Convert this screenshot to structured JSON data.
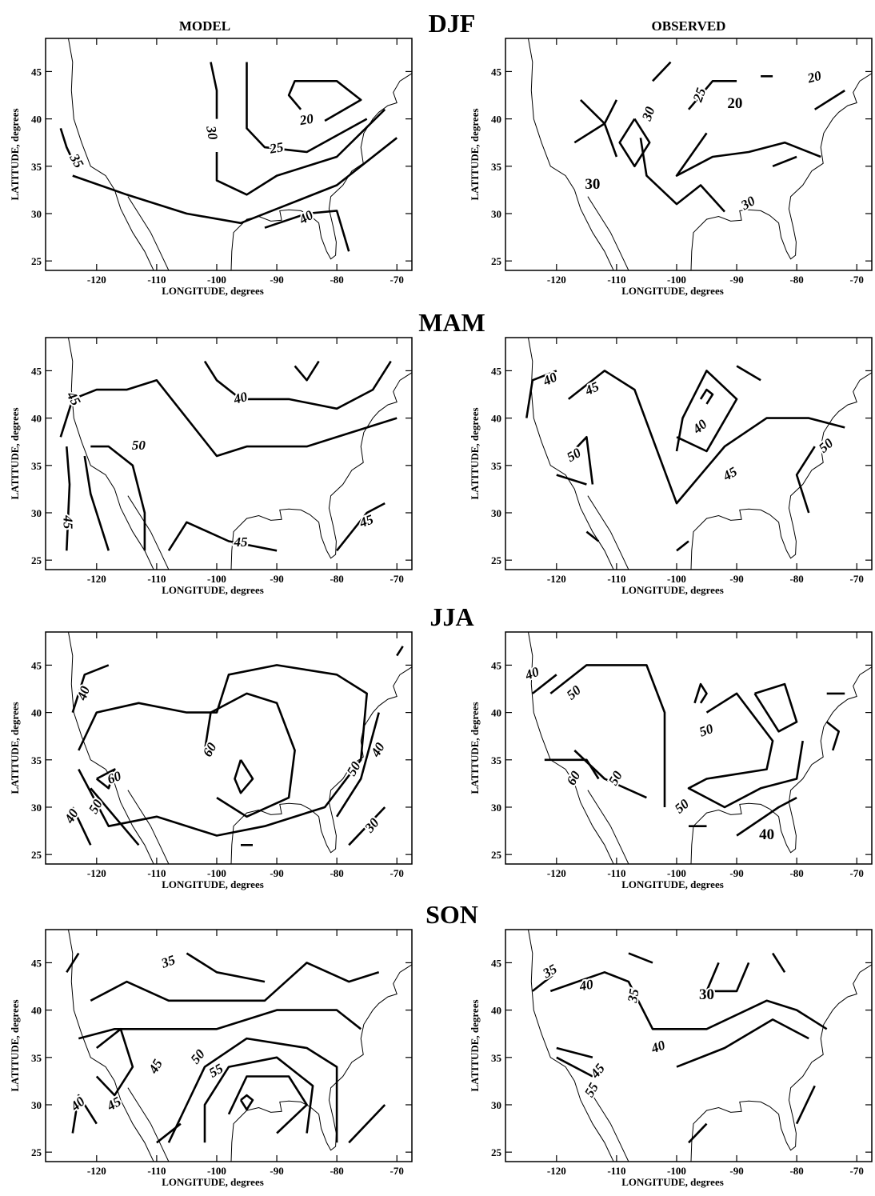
{
  "figure": {
    "column_titles": [
      "MODEL",
      "OBSERVED"
    ],
    "rows": [
      {
        "season": "DJF",
        "panels": [
          {
            "xlabel": "LONGITUDE, degrees",
            "ylabel": "LATITUDE, degrees",
            "xlim": [
              -128.5,
              -67.5
            ],
            "ylim": [
              24,
              48.5
            ],
            "xticks": [
              -120,
              -110,
              -100,
              -90,
              -80,
              -70
            ],
            "yticks": [
              25,
              30,
              35,
              40,
              45
            ],
            "contour_labels": [
              "30",
              "20",
              "25",
              "35",
              "40"
            ]
          },
          {
            "xlabel": "LONGITUDE, degrees",
            "ylabel": "LATITUDE, degrees",
            "xlim": [
              -128.5,
              -67.5
            ],
            "ylim": [
              24,
              48.5
            ],
            "xticks": [
              -120,
              -110,
              -100,
              -90,
              -80,
              -70
            ],
            "yticks": [
              25,
              30,
              35,
              40,
              45
            ],
            "contour_labels": [
              "20",
              "30",
              "25",
              "20",
              "30",
              "30"
            ]
          }
        ]
      },
      {
        "season": "MAM",
        "panels": [
          {
            "xlabel": "LONGITUDE, degrees",
            "ylabel": "LATITUDE, degrees",
            "xlim": [
              -128.5,
              -67.5
            ],
            "ylim": [
              24,
              48.5
            ],
            "xticks": [
              -120,
              -110,
              -100,
              -90,
              -80,
              -70
            ],
            "yticks": [
              25,
              30,
              35,
              40,
              45
            ],
            "contour_labels": [
              "45",
              "40",
              "50",
              "45",
              "45",
              "45"
            ]
          },
          {
            "xlabel": "LONGITUDE, degrees",
            "ylabel": "LATITUDE, degrees",
            "xlim": [
              -128.5,
              -67.5
            ],
            "ylim": [
              24,
              48.5
            ],
            "xticks": [
              -120,
              -110,
              -100,
              -90,
              -80,
              -70
            ],
            "yticks": [
              25,
              30,
              35,
              40,
              45
            ],
            "contour_labels": [
              "40",
              "45",
              "40",
              "50",
              "45",
              "50"
            ]
          }
        ]
      },
      {
        "season": "JJA",
        "panels": [
          {
            "xlabel": "LONGITUDE, degrees",
            "ylabel": "LATITUDE, degrees",
            "xlim": [
              -128.5,
              -67.5
            ],
            "ylim": [
              24,
              48.5
            ],
            "xticks": [
              -120,
              -110,
              -100,
              -90,
              -80,
              -70
            ],
            "yticks": [
              25,
              30,
              35,
              40,
              45
            ],
            "contour_labels": [
              "40",
              "60",
              "60",
              "50",
              "40",
              "50",
              "40",
              "30"
            ]
          },
          {
            "xlabel": "LONGITUDE, degrees",
            "ylabel": "LATITUDE, degrees",
            "xlim": [
              -128.5,
              -67.5
            ],
            "ylim": [
              24,
              48.5
            ],
            "xticks": [
              -120,
              -110,
              -100,
              -90,
              -80,
              -70
            ],
            "yticks": [
              25,
              30,
              35,
              40,
              45
            ],
            "contour_labels": [
              "40",
              "50",
              "50",
              "60",
              "50",
              "50",
              "40"
            ]
          }
        ]
      },
      {
        "season": "SON",
        "panels": [
          {
            "xlabel": "LONGITUDE, degrees",
            "ylabel": "LATITUDE, degrees",
            "xlim": [
              -128.5,
              -67.5
            ],
            "ylim": [
              24,
              48.5
            ],
            "xticks": [
              -120,
              -110,
              -100,
              -90,
              -80,
              -70
            ],
            "yticks": [
              25,
              30,
              35,
              40,
              45
            ],
            "contour_labels": [
              "35",
              "45",
              "50",
              "55",
              "45",
              "40"
            ]
          },
          {
            "xlabel": "LONGITUDE, degrees",
            "ylabel": "LATITUDE, degrees",
            "xlim": [
              -128.5,
              -67.5
            ],
            "ylim": [
              24,
              48.5
            ],
            "xticks": [
              -120,
              -110,
              -100,
              -90,
              -80,
              -70
            ],
            "yticks": [
              25,
              30,
              35,
              40,
              45
            ],
            "contour_labels": [
              "35",
              "40",
              "35",
              "30",
              "45",
              "55",
              "40"
            ]
          }
        ]
      }
    ]
  }
}
